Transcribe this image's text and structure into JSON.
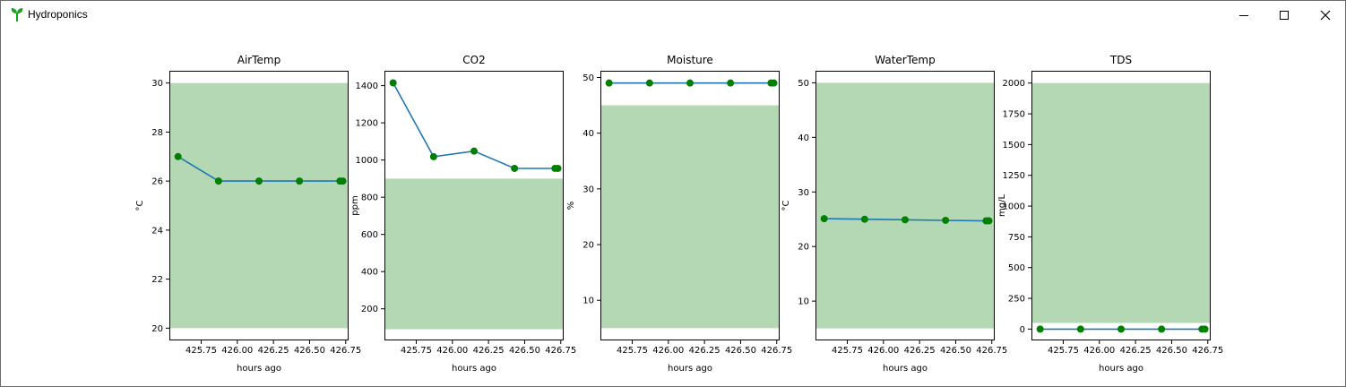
{
  "window": {
    "title": "Hydroponics"
  },
  "chart_data": [
    {
      "type": "line",
      "title": "AirTemp",
      "xlabel": "hours ago",
      "ylabel": "°C",
      "xlim": [
        425.53,
        426.77
      ],
      "ylim": [
        19.5,
        30.5
      ],
      "xticks": [
        "425.75",
        "426.00",
        "426.25",
        "426.50",
        "426.75"
      ],
      "yticks": [
        "20",
        "22",
        "24",
        "26",
        "28",
        "30"
      ],
      "band": [
        20,
        30
      ],
      "x": [
        425.59,
        425.87,
        426.15,
        426.43,
        426.71,
        426.73
      ],
      "series": [
        {
          "values": [
            27,
            26,
            26,
            26,
            26,
            26
          ]
        }
      ]
    },
    {
      "type": "line",
      "title": "CO2",
      "xlabel": "hours ago",
      "ylabel": "ppm",
      "xlim": [
        425.53,
        426.77
      ],
      "ylim": [
        30,
        1480
      ],
      "xticks": [
        "425.75",
        "426.00",
        "426.25",
        "426.50",
        "426.75"
      ],
      "yticks": [
        "200",
        "400",
        "600",
        "800",
        "1000",
        "1200",
        "1400"
      ],
      "band": [
        90,
        900
      ],
      "x": [
        425.59,
        425.87,
        426.15,
        426.43,
        426.71,
        426.73
      ],
      "series": [
        {
          "values": [
            1415,
            1018,
            1048,
            955,
            955,
            955
          ]
        }
      ]
    },
    {
      "type": "line",
      "title": "Moisture",
      "xlabel": "hours ago",
      "ylabel": "%",
      "xlim": [
        425.53,
        426.77
      ],
      "ylim": [
        2.8,
        51.2
      ],
      "xticks": [
        "425.75",
        "426.00",
        "426.25",
        "426.50",
        "426.75"
      ],
      "yticks": [
        "10",
        "20",
        "30",
        "40",
        "50"
      ],
      "band": [
        5,
        45
      ],
      "x": [
        425.59,
        425.87,
        426.15,
        426.43,
        426.71,
        426.73
      ],
      "series": [
        {
          "values": [
            49,
            49,
            49,
            49,
            49,
            49
          ]
        }
      ]
    },
    {
      "type": "line",
      "title": "WaterTemp",
      "xlabel": "hours ago",
      "ylabel": "°C",
      "xlim": [
        425.53,
        426.77
      ],
      "ylim": [
        2.8,
        52.2
      ],
      "xticks": [
        "425.75",
        "426.00",
        "426.25",
        "426.50",
        "426.75"
      ],
      "yticks": [
        "10",
        "20",
        "30",
        "40",
        "50"
      ],
      "band": [
        5,
        50
      ],
      "x": [
        425.59,
        425.87,
        426.15,
        426.43,
        426.71,
        426.73
      ],
      "series": [
        {
          "values": [
            25.1,
            25.0,
            24.9,
            24.8,
            24.7,
            24.7
          ]
        }
      ]
    },
    {
      "type": "line",
      "title": "TDS",
      "xlabel": "hours ago",
      "ylabel": "mg/L",
      "xlim": [
        425.53,
        426.77
      ],
      "ylim": [
        -92,
        2100
      ],
      "xticks": [
        "425.75",
        "426.00",
        "426.25",
        "426.50",
        "426.75"
      ],
      "yticks": [
        "0",
        "250",
        "500",
        "750",
        "1000",
        "1250",
        "1500",
        "1750",
        "2000"
      ],
      "band": [
        50,
        2000
      ],
      "x": [
        425.59,
        425.87,
        426.15,
        426.43,
        426.71,
        426.73
      ],
      "series": [
        {
          "values": [
            0,
            0,
            0,
            0,
            0,
            0
          ]
        }
      ]
    }
  ],
  "colors": {
    "line": "#1f77b4",
    "marker": "#008000",
    "band": "#b3d8b3"
  },
  "icons": {
    "app": "seedling-icon",
    "minimize": "minimize-icon",
    "maximize": "maximize-icon",
    "close": "close-icon"
  }
}
